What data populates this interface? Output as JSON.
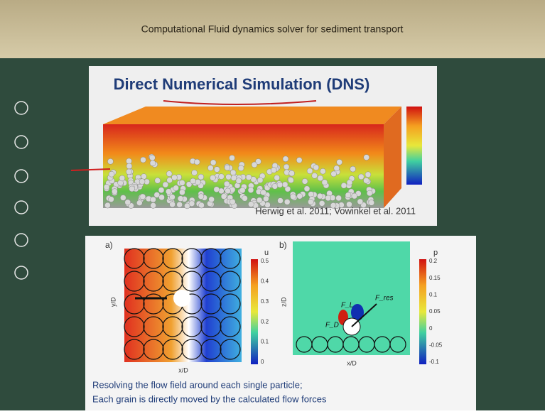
{
  "header": {
    "title": "Computational Fluid dynamics solver for sediment transport"
  },
  "slide1": {
    "title": "Direct Numerical Simulation (DNS)",
    "citation": "Herwig et al. 2011; Vowinkel et al. 2011"
  },
  "slide2": {
    "panel_a": {
      "label": "a)",
      "colorbar_title": "u",
      "colorbar_ticks": [
        "0.5",
        "0.4",
        "0.3",
        "0.2",
        "0.1",
        "0"
      ],
      "x_axis": "x/D",
      "y_axis": "y/D"
    },
    "panel_b": {
      "label": "b)",
      "colorbar_title": "p",
      "colorbar_ticks": [
        "0.2",
        "0.15",
        "0.1",
        "0.05",
        "0",
        "-0.05",
        "-0.1"
      ],
      "x_axis": "x/D",
      "y_axis": "z/D",
      "forces": [
        "F_D",
        "F_L",
        "F_res"
      ]
    },
    "caption": [
      "Resolving the flow field around each single particle;",
      "Each grain is directly moved by the calculated flow forces"
    ]
  }
}
